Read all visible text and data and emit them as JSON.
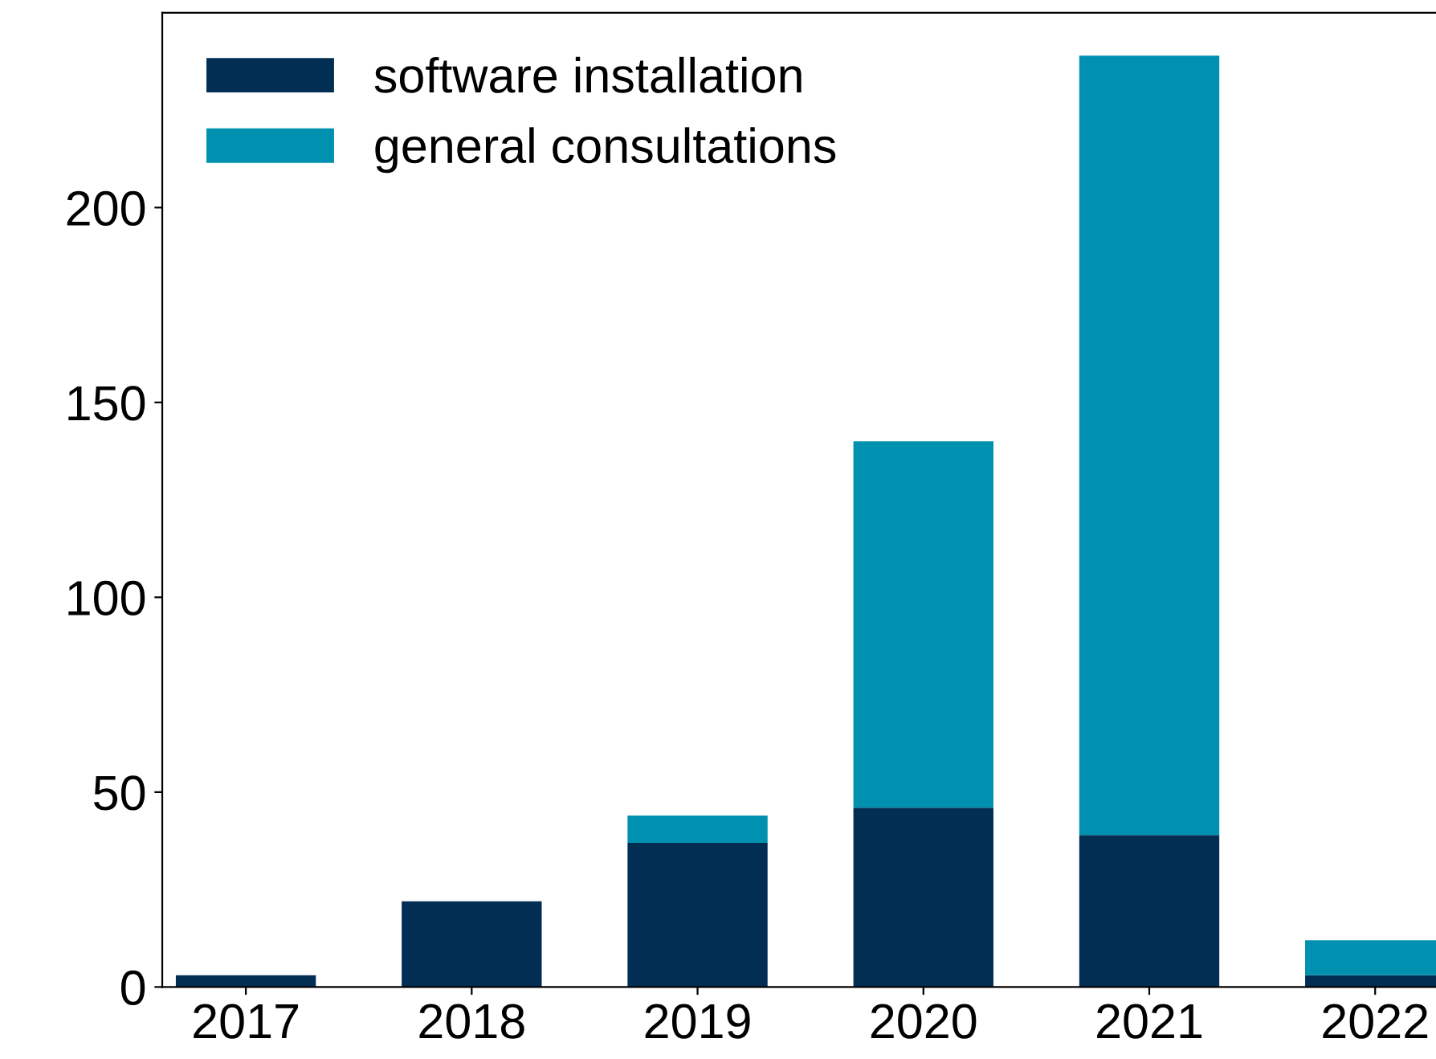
{
  "chart_data": {
    "type": "bar",
    "stacked": true,
    "categories": [
      "2017",
      "2018",
      "2019",
      "2020",
      "2021",
      "2022"
    ],
    "series": [
      {
        "name": "software installation",
        "color": "#022e54",
        "values": [
          3,
          22,
          37,
          46,
          39,
          3
        ]
      },
      {
        "name": "general consultations",
        "color": "#0090b0",
        "values": [
          0,
          0,
          7,
          94,
          200,
          9
        ]
      }
    ],
    "ylim": [
      0,
      250
    ],
    "yticks": [
      0,
      50,
      100,
      150,
      200
    ],
    "grid": false,
    "legend": "top left"
  }
}
